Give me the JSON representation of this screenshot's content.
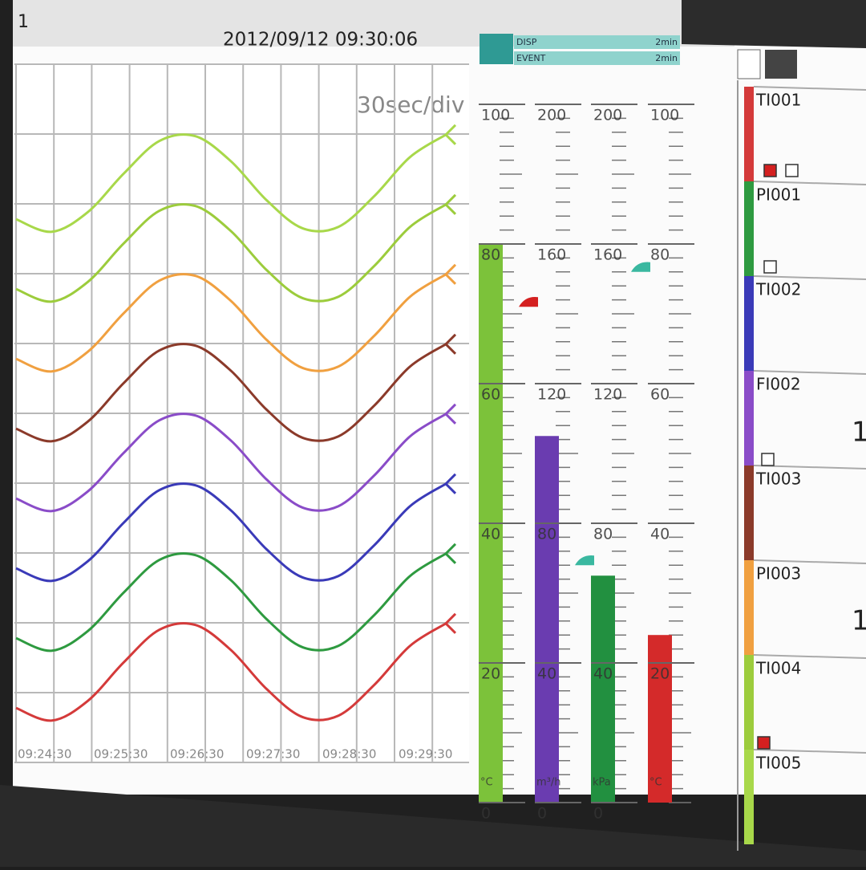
{
  "header": {
    "screen_no": "1",
    "datetime": "2012/09/12 09:30:06",
    "memory": [
      {
        "label": "DISP",
        "time": "2min"
      },
      {
        "label": "EVENT",
        "time": "2min"
      }
    ]
  },
  "chart_data": [
    {
      "type": "trend",
      "time_per_div": "30sec/div",
      "time_labels": [
        "09:24:30",
        "09:25:30",
        "09:26:30",
        "09:27:30",
        "09:28:30",
        "09:29:30"
      ],
      "ylim": [
        0,
        10
      ],
      "series": [
        {
          "name": "TI001",
          "color": "#d43a3a",
          "values": [
            0.78,
            0.6,
            0.88,
            1.43,
            1.9,
            1.97,
            1.61,
            1.05,
            0.65,
            0.67,
            1.11,
            1.67,
            1.99
          ]
        },
        {
          "name": "PI001",
          "color": "#2e9a40",
          "values": [
            1.78,
            1.6,
            1.88,
            2.43,
            2.9,
            2.97,
            2.61,
            2.05,
            1.65,
            1.67,
            2.11,
            2.67,
            2.99
          ]
        },
        {
          "name": "TI002",
          "color": "#3a3ab8",
          "values": [
            2.78,
            2.6,
            2.88,
            3.43,
            3.9,
            3.97,
            3.61,
            3.05,
            2.65,
            2.67,
            3.11,
            3.67,
            3.99
          ]
        },
        {
          "name": "FI002",
          "color": "#8a4cc8",
          "values": [
            3.78,
            3.6,
            3.88,
            4.43,
            4.9,
            4.97,
            4.61,
            4.05,
            3.65,
            3.67,
            4.11,
            4.67,
            4.99
          ]
        },
        {
          "name": "TI003",
          "color": "#8b3a2a",
          "values": [
            4.78,
            4.6,
            4.88,
            5.43,
            5.9,
            5.97,
            5.61,
            5.05,
            4.65,
            4.67,
            5.11,
            5.67,
            5.99
          ]
        },
        {
          "name": "PI003",
          "color": "#f0a040",
          "values": [
            5.78,
            5.6,
            5.88,
            6.43,
            6.9,
            6.97,
            6.61,
            6.05,
            5.65,
            5.67,
            6.11,
            6.67,
            6.99
          ]
        },
        {
          "name": "TI004",
          "color": "#9ccc3c",
          "values": [
            6.78,
            6.6,
            6.88,
            7.43,
            7.9,
            7.97,
            7.61,
            7.05,
            6.65,
            6.67,
            7.11,
            7.67,
            7.99
          ]
        },
        {
          "name": "TI005",
          "color": "#a8d84a",
          "values": [
            7.78,
            7.6,
            7.88,
            8.43,
            8.9,
            8.97,
            8.61,
            8.05,
            7.65,
            7.67,
            8.11,
            8.67,
            8.99
          ]
        }
      ]
    },
    {
      "type": "bar-gauge",
      "gauges": [
        {
          "unit": "°C",
          "ylim": [
            0,
            100
          ],
          "yticks": [
            0,
            20,
            40,
            60,
            80,
            100
          ],
          "value": 80,
          "alarm": 71,
          "color": "#7cc23a",
          "alarm_color": "#d42020"
        },
        {
          "unit": "m³/h",
          "ylim": [
            0,
            200
          ],
          "yticks": [
            0,
            40,
            80,
            120,
            160,
            200
          ],
          "value": 105,
          "alarm": 68,
          "color": "#6a3cb0",
          "alarm_color": "#3ab8a0"
        },
        {
          "unit": "kPa",
          "ylim": [
            0,
            200
          ],
          "yticks": [
            0,
            40,
            80,
            120,
            160,
            200
          ],
          "value": 65,
          "alarm": 152,
          "color": "#229040",
          "alarm_color": "#3ab8a0"
        },
        {
          "unit": "°C",
          "ylim": [
            0,
            100
          ],
          "yticks": [
            20,
            40,
            60,
            80,
            100
          ],
          "value": 24,
          "color": "#d42a2a"
        }
      ]
    }
  ],
  "tag_panel": {
    "partial_values": [
      "1",
      "1"
    ]
  }
}
